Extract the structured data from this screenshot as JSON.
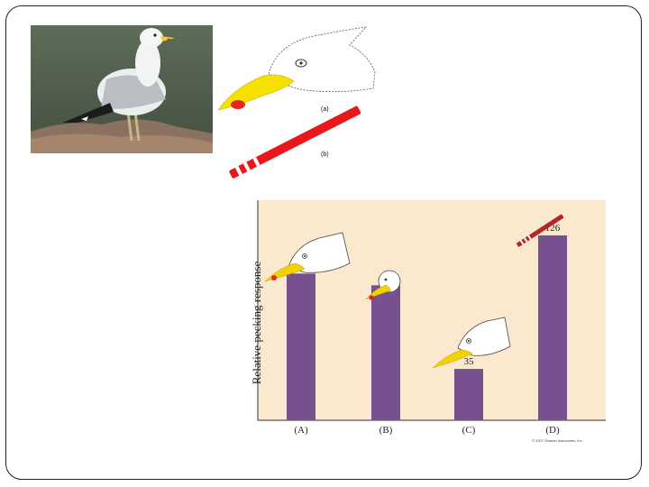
{
  "sketch": {
    "label_a": "(a)",
    "label_b": "(b)"
  },
  "chart_data": {
    "type": "bar",
    "categories": [
      "(A)",
      "(B)",
      "(C)",
      "(D)"
    ],
    "values": [
      100,
      92,
      35,
      126
    ],
    "ylabel": "Relative pecking response",
    "ylim": [
      0,
      150
    ],
    "bar_color": "#77518f",
    "background_color": "#fbe9cf",
    "copyright": "© 2007 Sinauer Associates, Inc."
  },
  "colors": {
    "beak_yellow": "#f5e000",
    "spot_red": "#e8251b",
    "stick_red": "#e8171c"
  }
}
